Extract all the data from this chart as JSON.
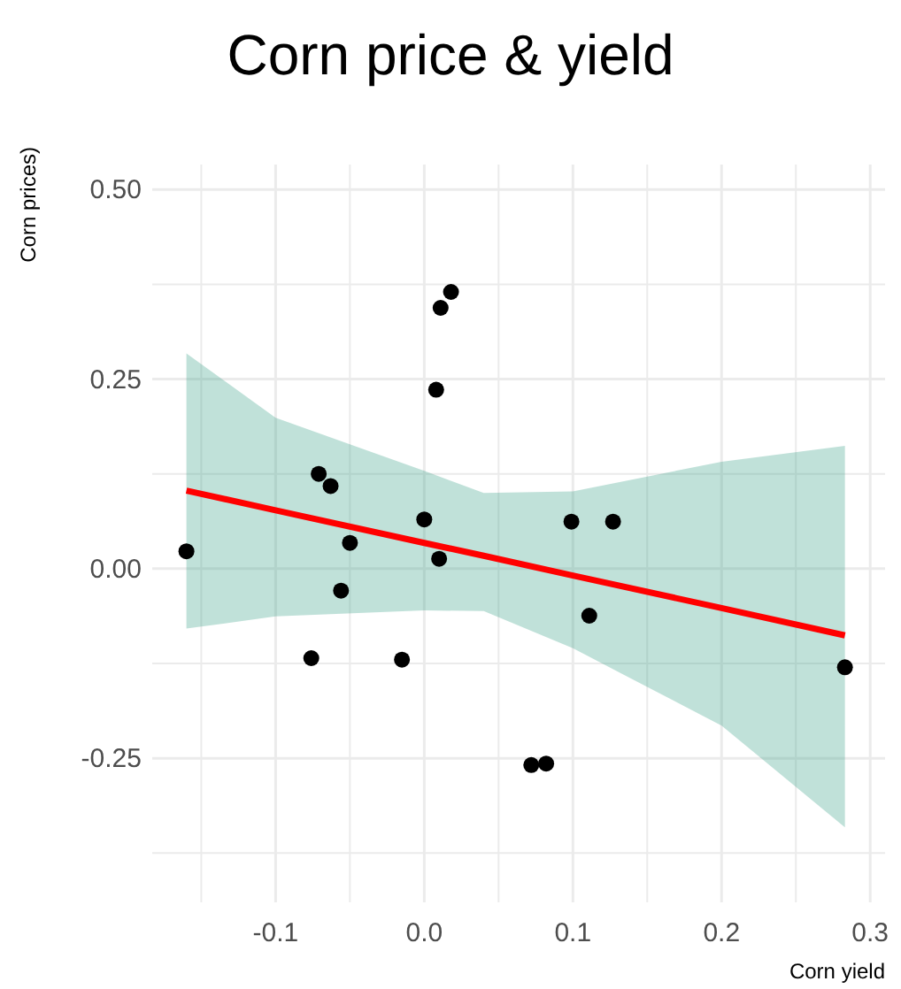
{
  "chart_data": {
    "type": "scatter",
    "title": "Corn price & yield",
    "xlabel": "Corn yield",
    "ylabel": "Corn prices)",
    "xlim": [
      -0.183,
      0.31
    ],
    "ylim": [
      -0.44,
      0.533
    ],
    "xticks": [
      {
        "value": -0.15,
        "label": null
      },
      {
        "value": -0.1,
        "label": "-0.1"
      },
      {
        "value": -0.05,
        "label": null
      },
      {
        "value": 0,
        "label": "0.0"
      },
      {
        "value": 0.05,
        "label": null
      },
      0.1,
      {
        "value": 0.15,
        "label": null
      },
      0.2,
      {
        "value": 0.25,
        "label": null
      },
      0.3
    ],
    "yticks": [
      {
        "value": -0.375,
        "label": null
      },
      {
        "value": -0.25,
        "label": "-0.25"
      },
      {
        "value": -0.125,
        "label": null
      },
      {
        "value": 0,
        "label": "0.00"
      },
      {
        "value": 0.125,
        "label": null
      },
      0.25,
      {
        "value": 0.375,
        "label": null
      },
      {
        "value": 0.5,
        "label": "0.50"
      }
    ],
    "grid": true,
    "series": [
      {
        "color": "#000000",
        "marker": "circle",
        "x": [
          -0.16,
          -0.071,
          -0.063,
          -0.05,
          -0.056,
          -0.076,
          -0.015,
          0.0,
          0.01,
          0.008,
          0.011,
          0.018,
          0.072,
          0.082,
          0.099,
          0.127,
          0.111,
          0.283
        ],
        "values": [
          0.023,
          0.125,
          0.109,
          0.034,
          -0.029,
          -0.118,
          -0.12,
          0.065,
          0.013,
          0.236,
          0.344,
          0.365,
          -0.259,
          -0.257,
          0.062,
          0.062,
          -0.062,
          -0.13
        ]
      },
      {
        "type": "line",
        "color": "#ff0000",
        "marker": "none",
        "line_style": "solid",
        "x": [
          -0.16,
          -0.1,
          0,
          0.04,
          0.1,
          0.2,
          0.283
        ],
        "values": [
          0.103,
          0.077,
          0.034,
          0.017,
          -0.009,
          -0.052,
          -0.088
        ],
        "lower": [
          -0.079,
          -0.063,
          -0.055,
          -0.056,
          -0.105,
          -0.207,
          -0.341
        ],
        "upper": [
          0.284,
          0.199,
          0.129,
          0.1,
          0.102,
          0.141,
          0.162
        ]
      }
    ]
  }
}
